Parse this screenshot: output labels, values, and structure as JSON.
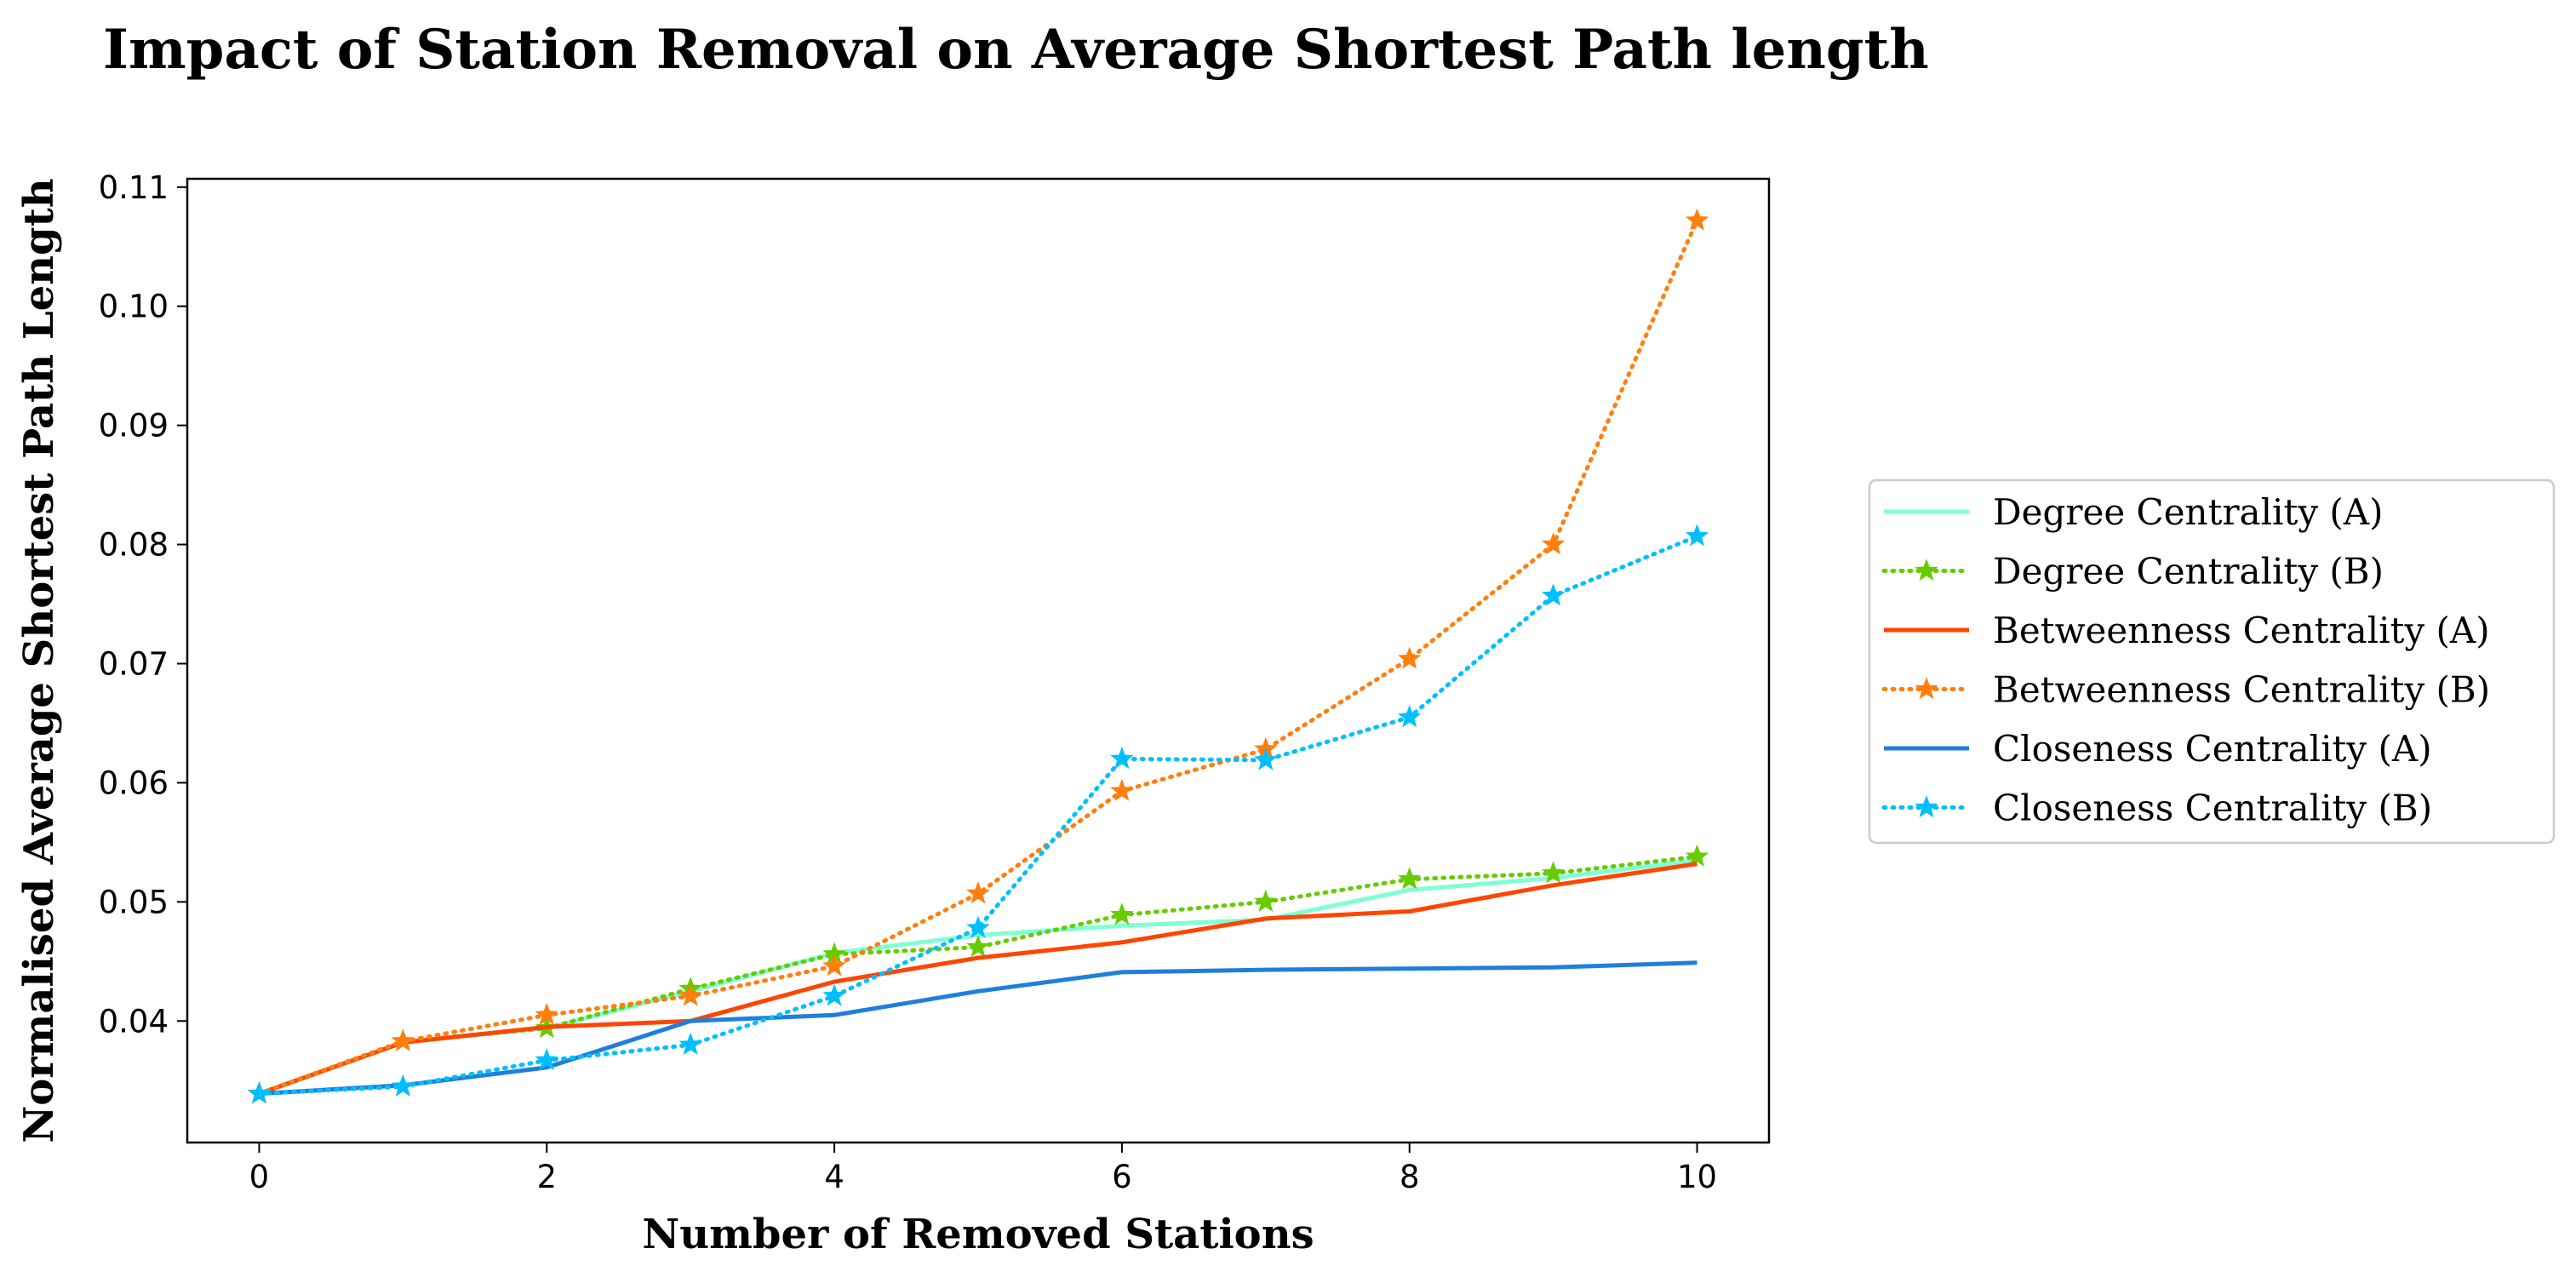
{
  "chart_data": {
    "type": "line",
    "title": "Impact of Station Removal on Average Shortest Path length",
    "xlabel": "Number of Removed Stations",
    "ylabel": "Normalised Average Shortest Path Length",
    "xlim": [
      -0.5,
      10.5
    ],
    "ylim": [
      0.0298,
      0.1107
    ],
    "xticks": [
      0,
      2,
      4,
      6,
      8,
      10
    ],
    "yticks": [
      0.04,
      0.05,
      0.06,
      0.07,
      0.08,
      0.09,
      0.1,
      0.11
    ],
    "ytick_labels": [
      "0.04",
      "0.05",
      "0.06",
      "0.07",
      "0.08",
      "0.09",
      "0.10",
      "0.11"
    ],
    "grid": false,
    "legend": "outside-right",
    "x": [
      0,
      1,
      2,
      3,
      4,
      5,
      6,
      7,
      8,
      9,
      10
    ],
    "series": [
      {
        "name": "Degree Centrality (A)",
        "color": "#7fffd4",
        "style": "solid",
        "marker": "none",
        "values": [
          0.0339,
          0.0382,
          0.0394,
          0.0425,
          0.0457,
          0.0472,
          0.048,
          0.0485,
          0.051,
          0.052,
          0.0535
        ]
      },
      {
        "name": "Degree Centrality (B)",
        "color": "#66cc00",
        "style": "dotted",
        "marker": "star",
        "values": [
          0.0339,
          0.0383,
          0.0394,
          0.0427,
          0.0456,
          0.0462,
          0.0489,
          0.05,
          0.0519,
          0.0524,
          0.0538
        ]
      },
      {
        "name": "Betweenness Centrality (A)",
        "color": "#ff4500",
        "style": "solid",
        "marker": "none",
        "values": [
          0.0339,
          0.0382,
          0.0395,
          0.04,
          0.0433,
          0.0453,
          0.0466,
          0.0486,
          0.0492,
          0.0514,
          0.0532
        ]
      },
      {
        "name": "Betweenness Centrality (B)",
        "color": "#ff7f0e",
        "style": "dotted",
        "marker": "star",
        "values": [
          0.0339,
          0.0383,
          0.0405,
          0.0421,
          0.0446,
          0.0507,
          0.0593,
          0.0628,
          0.0704,
          0.08,
          0.1072
        ]
      },
      {
        "name": "Closeness Centrality (A)",
        "color": "#1e7fdc",
        "style": "solid",
        "marker": "none",
        "values": [
          0.0339,
          0.0346,
          0.0361,
          0.04,
          0.0405,
          0.0425,
          0.0441,
          0.0443,
          0.0444,
          0.0445,
          0.0449
        ]
      },
      {
        "name": "Closeness Centrality (B)",
        "color": "#00bfff",
        "style": "dotted",
        "marker": "star",
        "values": [
          0.0339,
          0.0345,
          0.0367,
          0.038,
          0.0421,
          0.0478,
          0.062,
          0.0619,
          0.0655,
          0.0757,
          0.0807
        ]
      }
    ]
  }
}
